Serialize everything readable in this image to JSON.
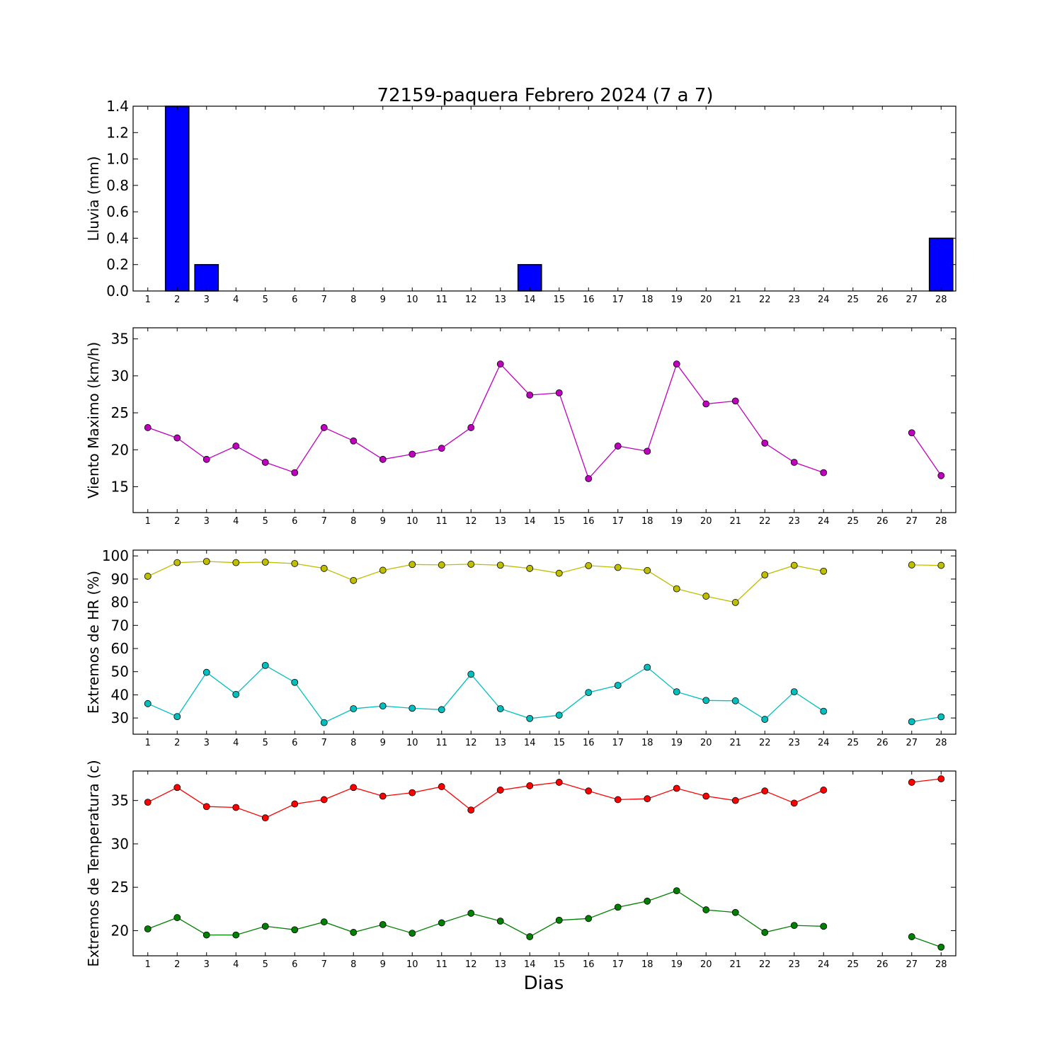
{
  "figure": {
    "title": "72159-paquera Febrero 2024  (7 a 7)",
    "xlabel": "Dias",
    "background": "#ffffff"
  },
  "chart_data": [
    {
      "id": "lluvia",
      "type": "bar",
      "title": "72159-paquera Febrero 2024  (7 a 7)",
      "ylabel": "Lluvia (mm)",
      "ylim": [
        0,
        1.4
      ],
      "yticks": [
        0.0,
        0.2,
        0.4,
        0.6,
        0.8,
        1.0,
        1.2,
        1.4
      ],
      "ytick_decimals": 1,
      "x": [
        1,
        2,
        3,
        4,
        5,
        6,
        7,
        8,
        9,
        10,
        11,
        12,
        13,
        14,
        15,
        16,
        17,
        18,
        19,
        20,
        21,
        22,
        23,
        24,
        25,
        26,
        27,
        28
      ],
      "series": [
        {
          "color": "#0000ff",
          "values": [
            0,
            1.4,
            0.2,
            0,
            0,
            0,
            0,
            0,
            0,
            0,
            0,
            0,
            0,
            0.2,
            0,
            0,
            0,
            0,
            0,
            0,
            0,
            0,
            0,
            0,
            0,
            0,
            0,
            0.4
          ]
        }
      ]
    },
    {
      "id": "viento",
      "type": "line",
      "ylabel": "Viento Maximo (km/h)",
      "ylim": [
        11.5,
        36.5
      ],
      "yticks": [
        15,
        20,
        25,
        30,
        35
      ],
      "ytick_decimals": 0,
      "x": [
        1,
        2,
        3,
        4,
        5,
        6,
        7,
        8,
        9,
        10,
        11,
        12,
        13,
        14,
        15,
        16,
        17,
        18,
        19,
        20,
        21,
        22,
        23,
        24,
        25,
        26,
        27,
        28
      ],
      "series": [
        {
          "color": "#bf00bf",
          "values": [
            23.0,
            21.6,
            18.7,
            20.5,
            18.3,
            16.9,
            23.0,
            21.2,
            18.7,
            19.4,
            20.2,
            23.0,
            31.6,
            27.4,
            27.7,
            16.1,
            20.5,
            19.8,
            31.6,
            26.2,
            26.6,
            20.9,
            18.3,
            16.9,
            null,
            null,
            22.3,
            16.5
          ]
        }
      ]
    },
    {
      "id": "hr",
      "type": "line",
      "ylabel": "Extremos de HR (%)",
      "ylim": [
        23,
        102.5
      ],
      "yticks": [
        30,
        40,
        50,
        60,
        70,
        80,
        90,
        100
      ],
      "ytick_decimals": 0,
      "x": [
        1,
        2,
        3,
        4,
        5,
        6,
        7,
        8,
        9,
        10,
        11,
        12,
        13,
        14,
        15,
        16,
        17,
        18,
        19,
        20,
        21,
        22,
        23,
        24,
        25,
        26,
        27,
        28
      ],
      "series": [
        {
          "color": "#bfbf00",
          "values": [
            91.2,
            97.1,
            97.6,
            97.1,
            97.3,
            96.7,
            94.6,
            89.4,
            93.8,
            96.3,
            96.1,
            96.4,
            96.0,
            94.6,
            92.5,
            95.8,
            95.0,
            93.7,
            85.8,
            82.6,
            79.9,
            91.8,
            95.9,
            93.4,
            null,
            null,
            96.1,
            95.9
          ]
        },
        {
          "color": "#00bfbf",
          "values": [
            36.2,
            30.6,
            49.7,
            40.2,
            52.7,
            45.4,
            28.0,
            34.0,
            35.2,
            34.2,
            33.6,
            48.9,
            34.0,
            29.8,
            31.2,
            41.0,
            44.1,
            51.9,
            41.3,
            37.6,
            37.4,
            29.4,
            41.3,
            32.9,
            null,
            null,
            28.4,
            30.5
          ]
        }
      ]
    },
    {
      "id": "temperatura",
      "type": "line",
      "ylabel": "Extremos de Temperatura (c)",
      "ylim": [
        17.1,
        38.4
      ],
      "yticks": [
        20,
        25,
        30,
        35
      ],
      "ytick_decimals": 0,
      "x": [
        1,
        2,
        3,
        4,
        5,
        6,
        7,
        8,
        9,
        10,
        11,
        12,
        13,
        14,
        15,
        16,
        17,
        18,
        19,
        20,
        21,
        22,
        23,
        24,
        25,
        26,
        27,
        28
      ],
      "series": [
        {
          "color": "#ff0000",
          "values": [
            34.8,
            36.5,
            34.3,
            34.2,
            33.0,
            34.6,
            35.1,
            36.5,
            35.5,
            35.9,
            36.6,
            33.9,
            36.2,
            36.7,
            37.1,
            36.1,
            35.1,
            35.2,
            36.4,
            35.5,
            35.0,
            36.1,
            34.7,
            36.2,
            null,
            null,
            37.1,
            37.5
          ]
        },
        {
          "color": "#008000",
          "values": [
            20.2,
            21.5,
            19.5,
            19.5,
            20.5,
            20.1,
            21.0,
            19.8,
            20.7,
            19.7,
            20.9,
            22.0,
            21.1,
            19.3,
            21.2,
            21.4,
            22.7,
            23.4,
            24.6,
            22.4,
            22.1,
            19.8,
            20.6,
            20.5,
            null,
            null,
            19.3,
            18.1
          ]
        }
      ]
    }
  ]
}
